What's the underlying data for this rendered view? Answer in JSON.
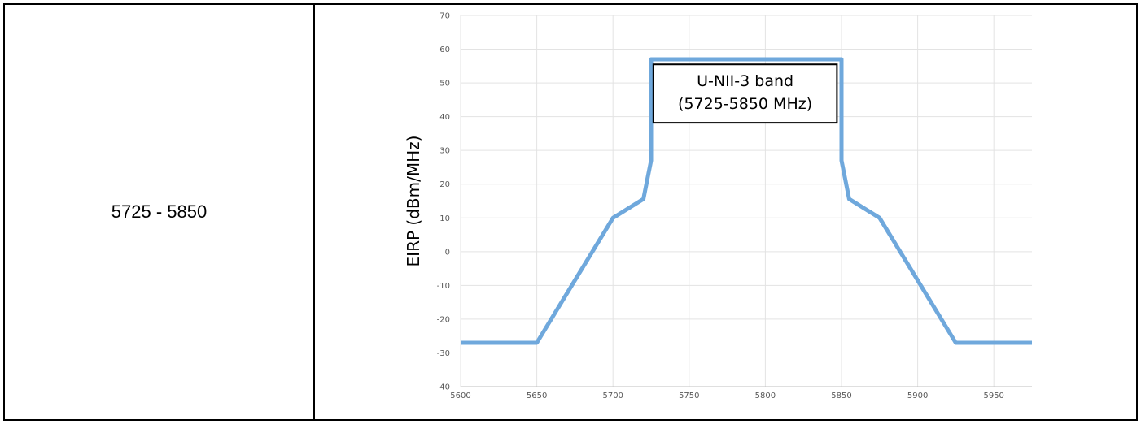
{
  "table": {
    "frequency_range": "5725 - 5850"
  },
  "chart_data": {
    "type": "line",
    "title": "",
    "xlabel": "",
    "ylabel": "EIRP (dBm/MHz)",
    "xlim": [
      5600,
      5975
    ],
    "ylim": [
      -40,
      70
    ],
    "x_ticks": [
      5600,
      5650,
      5700,
      5750,
      5800,
      5850,
      5900,
      5950
    ],
    "y_ticks": [
      -40,
      -30,
      -20,
      -10,
      0,
      10,
      20,
      30,
      40,
      50,
      60,
      70
    ],
    "grid": true,
    "series": [
      {
        "color": "#6fa8dc",
        "x": [
          5600,
          5650,
          5700,
          5720,
          5725,
          5725,
          5850,
          5850,
          5855,
          5875,
          5925,
          5975
        ],
        "y": [
          -27,
          -27,
          10,
          15.6,
          27,
          57,
          57,
          27,
          15.6,
          10,
          -27,
          -27
        ]
      }
    ],
    "annotation": {
      "line1": "U-NII-3 band",
      "line2": "(5725-5850 MHz)"
    }
  }
}
